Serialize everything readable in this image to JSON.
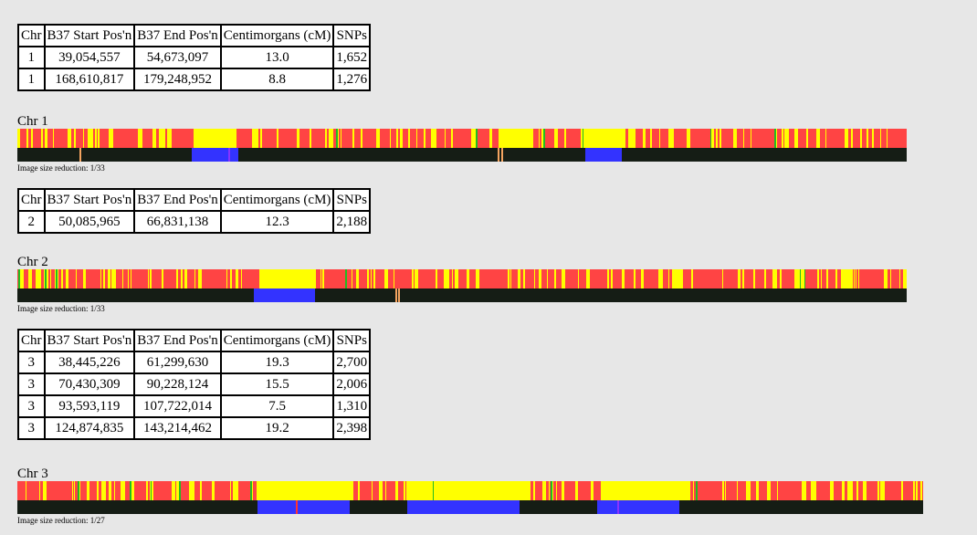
{
  "headers": [
    "Chr",
    "B37 Start Pos'n",
    "B37 End Pos'n",
    "Centimorgans (cM)",
    "SNPs"
  ],
  "sections": [
    {
      "label": "Chr 1",
      "caption": "Image size reduction: 1/33",
      "rows": [
        [
          "1",
          "39,054,557",
          "54,673,097",
          "13.0",
          "1,652"
        ],
        [
          "1",
          "168,610,817",
          "179,248,952",
          "8.8",
          "1,276"
        ]
      ]
    },
    {
      "label": "Chr 2",
      "caption": "Image size reduction: 1/33",
      "rows": [
        [
          "2",
          "50,085,965",
          "66,831,138",
          "12.3",
          "2,188"
        ]
      ]
    },
    {
      "label": "Chr 3",
      "caption": "Image size reduction: 1/27",
      "rows": [
        [
          "3",
          "38,445,226",
          "61,299,630",
          "19.3",
          "2,700"
        ],
        [
          "3",
          "70,430,309",
          "90,228,124",
          "15.5",
          "2,006"
        ],
        [
          "3",
          "93,593,119",
          "107,722,014",
          "7.5",
          "1,310"
        ],
        [
          "3",
          "124,874,835",
          "143,214,462",
          "19.2",
          "2,398"
        ]
      ]
    }
  ],
  "colors": {
    "red": "#ff4444",
    "yellow": "#ffff00",
    "green": "#22bb22",
    "match": "#3333ff",
    "background_bar": "#151d15",
    "marker": "#f4a460"
  }
}
